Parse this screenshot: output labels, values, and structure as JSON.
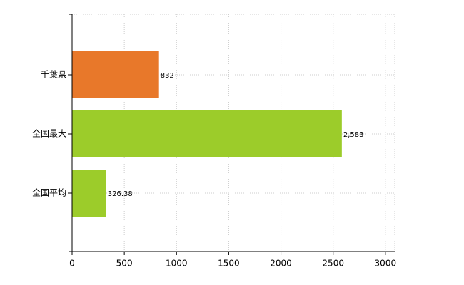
{
  "chart_data": {
    "type": "hbar",
    "categories": [
      "千葉県",
      "全国最大",
      "全国平均"
    ],
    "values": [
      832,
      2583,
      326.38
    ],
    "value_labels": [
      "832",
      "2,583",
      "326.38"
    ],
    "colors": [
      "#e8782a",
      "#9ccc2a",
      "#9ccc2a"
    ],
    "xlim": [
      0,
      3090
    ],
    "xticks": [
      0,
      500,
      1000,
      1500,
      2000,
      2500,
      3000
    ],
    "grid": true
  }
}
